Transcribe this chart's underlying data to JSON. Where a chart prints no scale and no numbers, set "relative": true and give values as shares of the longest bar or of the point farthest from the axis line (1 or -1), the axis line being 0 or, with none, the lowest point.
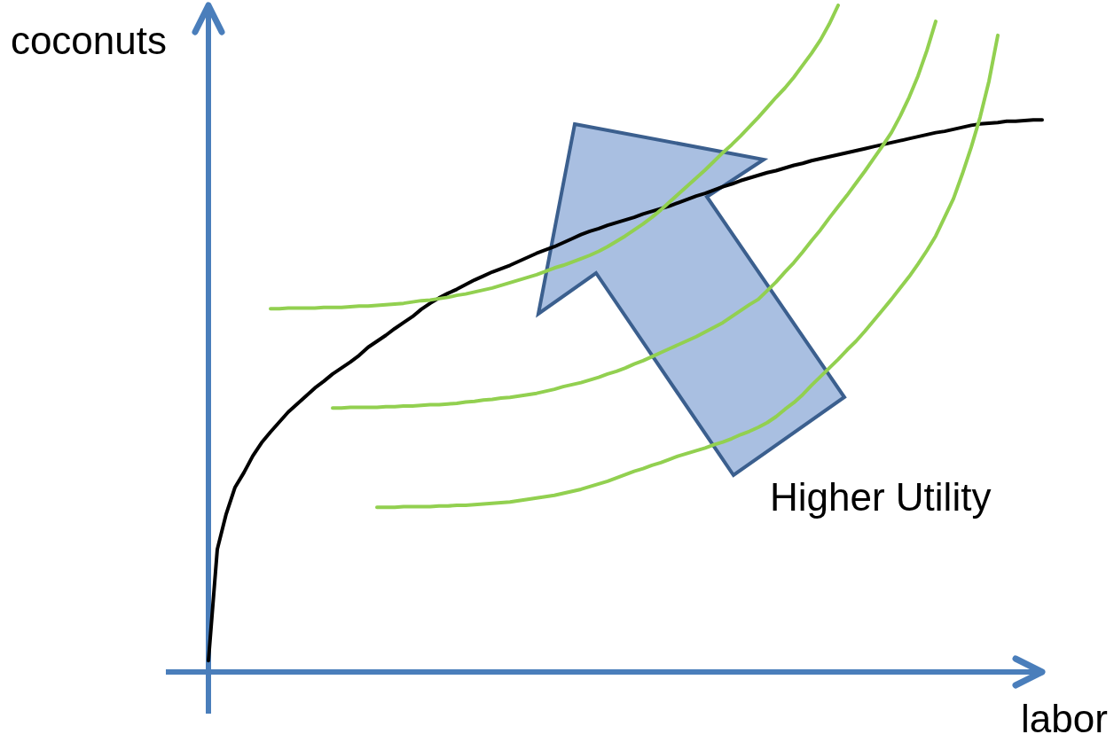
{
  "chart_data": {
    "type": "line",
    "relative": true,
    "xlabel": "labor",
    "ylabel": "coconuts",
    "annotations": [
      "Higher Utility"
    ],
    "marker": "none",
    "line_style": "solid",
    "categories": [
      null,
      null,
      null,
      null,
      null,
      null,
      null,
      null,
      null,
      null,
      null,
      null,
      null,
      null,
      null,
      null,
      null,
      null,
      null,
      null,
      null,
      null,
      null,
      null,
      null,
      null,
      null,
      null,
      null,
      null,
      null,
      null,
      null,
      null,
      null,
      null,
      null,
      null,
      null,
      null,
      null,
      null,
      null,
      null,
      null,
      null,
      null,
      null,
      null,
      null,
      null,
      null,
      null,
      null,
      null,
      null,
      null,
      null,
      null,
      null,
      null,
      null,
      null,
      null,
      null,
      null,
      null,
      null,
      null,
      null,
      null,
      null,
      null,
      null,
      null,
      null,
      null,
      null,
      null,
      null,
      null,
      null,
      null,
      null,
      null,
      null,
      null,
      null,
      null,
      null,
      null,
      null,
      null,
      null,
      null
    ],
    "series": [
      {
        "color": "#000000",
        "values": [
          0.017,
          0.184,
          0.237,
          0.277,
          0.299,
          0.324,
          0.344,
          0.36,
          0.375,
          0.39,
          0.402,
          0.414,
          0.426,
          0.436,
          0.447,
          0.456,
          0.465,
          0.475,
          0.487,
          0.496,
          0.505,
          0.515,
          0.524,
          0.533,
          0.544,
          0.553,
          0.561,
          0.568,
          0.574,
          0.581,
          0.588,
          0.594,
          0.6,
          0.605,
          0.61,
          0.616,
          0.622,
          0.628,
          0.633,
          0.638,
          0.644,
          0.65,
          0.656,
          0.661,
          0.665,
          0.67,
          0.674,
          0.678,
          0.682,
          0.687,
          0.691,
          0.695,
          0.699,
          0.704,
          0.709,
          0.714,
          0.718,
          0.723,
          0.728,
          0.732,
          0.737,
          0.741,
          0.745,
          0.749,
          0.752,
          0.756,
          0.76,
          0.763,
          0.767,
          0.77,
          0.773,
          0.776,
          0.779,
          0.782,
          0.785,
          0.788,
          0.791,
          0.794,
          0.797,
          0.8,
          0.803,
          0.806,
          0.809,
          0.811,
          0.814,
          0.817,
          0.82,
          0.822,
          0.823,
          0.824,
          0.826,
          0.826,
          0.827,
          0.828,
          0.828
        ]
      },
      {
        "color": "#92d050",
        "values": [
          null,
          null,
          null,
          null,
          null,
          null,
          null,
          0.545,
          0.545,
          0.546,
          0.546,
          0.546,
          0.546,
          0.547,
          0.547,
          0.547,
          0.548,
          0.549,
          0.549,
          0.55,
          0.551,
          0.552,
          0.553,
          0.555,
          0.557,
          0.558,
          0.56,
          0.562,
          0.565,
          0.567,
          0.57,
          0.573,
          0.576,
          0.58,
          0.584,
          0.588,
          0.592,
          0.596,
          0.601,
          0.606,
          0.61,
          0.615,
          0.62,
          0.625,
          0.631,
          0.638,
          0.646,
          0.654,
          0.663,
          0.672,
          0.682,
          0.693,
          0.705,
          0.717,
          0.729,
          0.741,
          0.753,
          0.766,
          0.779,
          0.791,
          0.804,
          0.818,
          0.832,
          0.847,
          0.862,
          0.876,
          0.892,
          0.91,
          0.928,
          0.948,
          0.972,
          1,
          null,
          null,
          null,
          null,
          null,
          null,
          null,
          null,
          null,
          null,
          null,
          null,
          null,
          null,
          null,
          null,
          null,
          null,
          null,
          null,
          null,
          null,
          null
        ]
      },
      {
        "color": "#92d050",
        "values": [
          null,
          null,
          null,
          null,
          null,
          null,
          null,
          null,
          null,
          null,
          null,
          null,
          null,
          null,
          0.396,
          0.396,
          0.397,
          0.397,
          0.397,
          0.397,
          0.398,
          0.398,
          0.399,
          0.399,
          0.4,
          0.401,
          0.401,
          0.402,
          0.403,
          0.405,
          0.406,
          0.408,
          0.409,
          0.411,
          0.412,
          0.414,
          0.416,
          0.418,
          0.421,
          0.424,
          0.428,
          0.431,
          0.434,
          0.438,
          0.442,
          0.447,
          0.451,
          0.456,
          0.462,
          0.467,
          0.473,
          0.479,
          0.485,
          0.491,
          0.497,
          0.503,
          0.51,
          0.517,
          0.524,
          0.533,
          0.542,
          0.551,
          0.559,
          0.572,
          0.585,
          0.6,
          0.614,
          0.63,
          0.647,
          0.663,
          0.681,
          0.698,
          0.715,
          0.733,
          0.751,
          0.77,
          0.789,
          0.809,
          0.834,
          0.862,
          0.894,
          0.932,
          0.976,
          null,
          null,
          null,
          null,
          null,
          null,
          null,
          null,
          null,
          null,
          null,
          null
        ]
      },
      {
        "color": "#92d050",
        "values": [
          null,
          null,
          null,
          null,
          null,
          null,
          null,
          null,
          null,
          null,
          null,
          null,
          null,
          null,
          null,
          null,
          null,
          null,
          null,
          0.247,
          0.247,
          0.247,
          0.248,
          0.248,
          0.248,
          0.248,
          0.249,
          0.249,
          0.25,
          0.25,
          0.251,
          0.252,
          0.253,
          0.254,
          0.255,
          0.257,
          0.259,
          0.261,
          0.263,
          0.265,
          0.268,
          0.271,
          0.274,
          0.278,
          0.282,
          0.286,
          0.291,
          0.296,
          0.301,
          0.305,
          0.31,
          0.314,
          0.319,
          0.324,
          0.328,
          0.332,
          0.336,
          0.341,
          0.345,
          0.35,
          0.356,
          0.361,
          0.367,
          0.374,
          0.383,
          0.394,
          0.404,
          0.416,
          0.43,
          0.443,
          0.456,
          0.469,
          0.483,
          0.496,
          0.511,
          0.527,
          0.543,
          0.559,
          0.576,
          0.593,
          0.612,
          0.632,
          0.654,
          0.682,
          0.71,
          0.747,
          0.787,
          0.832,
          0.886,
          0.955,
          null,
          null,
          null,
          null,
          null
        ]
      }
    ]
  }
}
